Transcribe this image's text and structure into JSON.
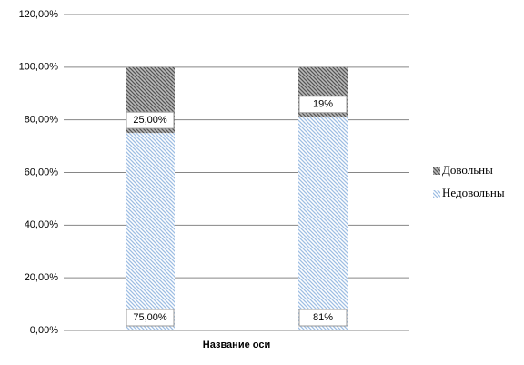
{
  "chart_data": {
    "type": "stacked-bar",
    "categories": [
      null,
      null
    ],
    "x_label": "Название оси",
    "series": [
      {
        "name": "Недовольны",
        "color": "#9dbde3",
        "values": [
          75,
          81
        ],
        "value_labels": [
          "75,00%",
          "81%"
        ]
      },
      {
        "name": "Довольны",
        "color": "#555555",
        "values": [
          25,
          19
        ],
        "value_labels": [
          "25,00%",
          "19%"
        ]
      }
    ],
    "ylim": [
      0,
      120
    ],
    "yticks": [
      {
        "value": 0,
        "label": "0,00%"
      },
      {
        "value": 20,
        "label": "20,00%"
      },
      {
        "value": 40,
        "label": "40,00%"
      },
      {
        "value": 60,
        "label": "60,00%"
      },
      {
        "value": 80,
        "label": "80,00%"
      },
      {
        "value": 100,
        "label": "100,00%"
      },
      {
        "value": 120,
        "label": "120,00%"
      }
    ],
    "grid": true,
    "legend": "right"
  }
}
